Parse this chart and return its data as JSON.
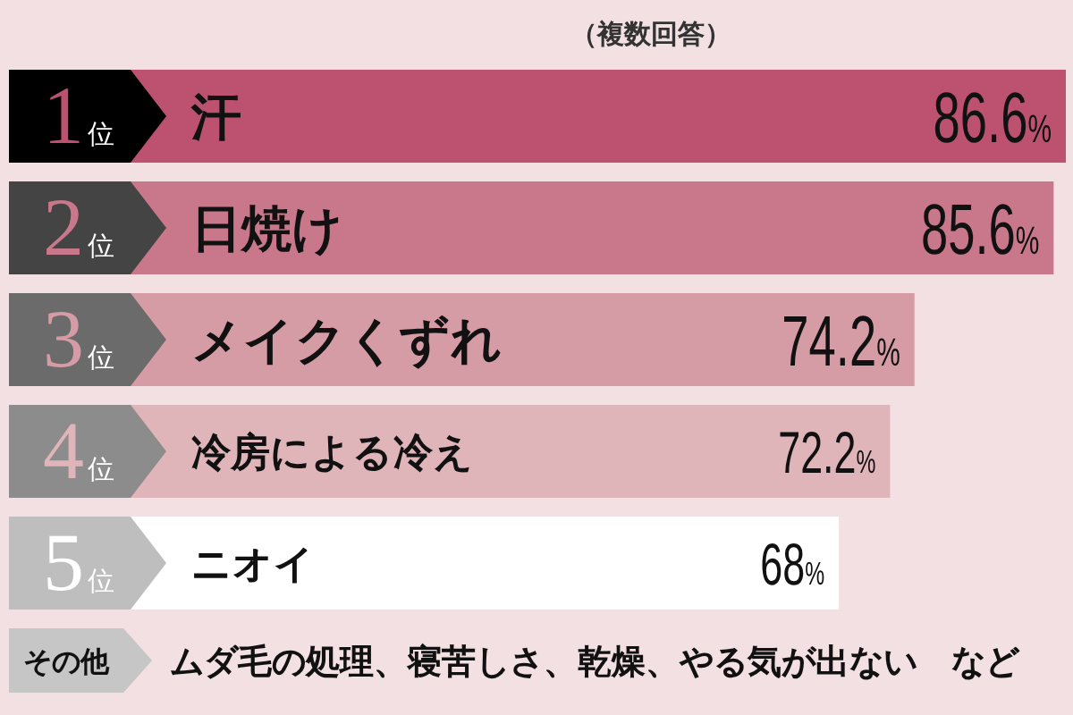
{
  "chart_data": {
    "type": "bar",
    "orientation": "horizontal",
    "subtitle": "（複数回答）",
    "categories": [
      "汗",
      "日焼け",
      "メイクくずれ",
      "冷房による冷え",
      "ニオイ"
    ],
    "values": [
      86.6,
      85.6,
      74.2,
      72.2,
      68
    ],
    "colors": [
      "#bc5270",
      "#c8788a",
      "#d69ca5",
      "#e0b5ba",
      "#ffffff"
    ],
    "value_labels": [
      "86.6%",
      "85.6%",
      "74.2%",
      "72.2%",
      "68%"
    ],
    "annotations": [
      {
        "text": "1位",
        "y": "汗"
      },
      {
        "text": "2位",
        "y": "日焼け"
      },
      {
        "text": "3位",
        "y": "メイクくずれ"
      },
      {
        "text": "4位",
        "y": "冷房による冷え"
      },
      {
        "text": "5位",
        "y": "ニオイ"
      },
      "その他",
      "ムダ毛の処理、寝苦しさ、乾燥、やる気が出ない　など"
    ]
  }
}
